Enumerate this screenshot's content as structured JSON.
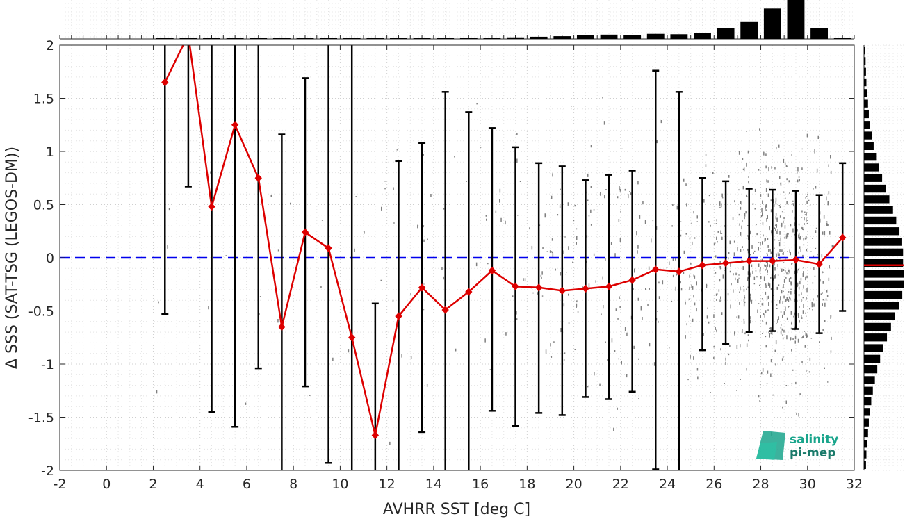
{
  "chart_data": {
    "type": "scatter",
    "title": "",
    "xlabel": "AVHRR SST [deg C]",
    "ylabel": "Δ SSS (SAT-TSG (LEGOS-DM))",
    "xlim": [
      -2,
      32
    ],
    "ylim": [
      -2,
      2
    ],
    "xticks": [
      -2,
      0,
      2,
      4,
      6,
      8,
      10,
      12,
      14,
      16,
      18,
      20,
      22,
      24,
      26,
      28,
      30,
      32
    ],
    "yticks": [
      -2,
      -1.5,
      -1,
      -0.5,
      0,
      0.5,
      1,
      1.5,
      2
    ],
    "grid": true,
    "reference_line": {
      "y": 0,
      "style": "dashed",
      "color": "#0000ee"
    },
    "binned_stats": {
      "x": [
        2.5,
        3.5,
        4.5,
        5.5,
        6.5,
        7.5,
        8.5,
        9.5,
        10.5,
        11.5,
        12.5,
        13.5,
        14.5,
        15.5,
        16.5,
        17.5,
        18.5,
        19.5,
        20.5,
        21.5,
        22.5,
        23.5,
        24.5,
        25.5,
        26.5,
        27.5,
        28.5,
        29.5,
        30.5,
        31.5
      ],
      "mean": [
        1.65,
        2.1,
        0.48,
        1.25,
        0.75,
        -0.65,
        0.24,
        0.09,
        -0.75,
        -1.67,
        -0.55,
        -0.28,
        -0.49,
        -0.32,
        -0.12,
        -0.27,
        -0.28,
        -0.31,
        -0.29,
        -0.27,
        -0.21,
        -0.11,
        -0.13,
        -0.07,
        -0.05,
        -0.03,
        -0.03,
        -0.02,
        -0.06,
        0.19
      ],
      "upper": [
        2.6,
        2.6,
        2.6,
        2.6,
        2.6,
        1.16,
        1.69,
        2.6,
        2.6,
        -0.43,
        0.91,
        1.08,
        1.56,
        1.37,
        1.22,
        1.04,
        0.89,
        0.86,
        0.73,
        0.78,
        0.82,
        1.76,
        1.56,
        0.75,
        0.72,
        0.65,
        0.64,
        0.63,
        0.59,
        0.89
      ],
      "lower": [
        -0.53,
        0.67,
        -1.45,
        -1.59,
        -1.04,
        -2.6,
        -1.21,
        -1.93,
        -2.6,
        -2.6,
        -2.6,
        -1.64,
        -2.6,
        -2.6,
        -1.44,
        -1.58,
        -1.46,
        -1.48,
        -1.31,
        -1.33,
        -1.26,
        -1.99,
        -2.6,
        -0.87,
        -0.81,
        -0.7,
        -0.69,
        -0.67,
        -0.71,
        -0.5
      ],
      "mean_color": "#dd0000",
      "errorbar_color": "#000000"
    },
    "x_histogram": {
      "bins": [
        2.5,
        3.5,
        4.5,
        5.5,
        6.5,
        7.5,
        8.5,
        9.5,
        10.5,
        11.5,
        12.5,
        13.5,
        14.5,
        15.5,
        16.5,
        17.5,
        18.5,
        19.5,
        20.5,
        21.5,
        22.5,
        23.5,
        24.5,
        25.5,
        26.5,
        27.5,
        28.5,
        29.5,
        30.5,
        31.5
      ],
      "counts": [
        0.002,
        0.002,
        0.002,
        0.002,
        0.002,
        0.002,
        0.002,
        0.002,
        0.002,
        0.002,
        0.02,
        0.02,
        0.02,
        0.025,
        0.025,
        0.04,
        0.055,
        0.07,
        0.09,
        0.11,
        0.095,
        0.13,
        0.12,
        0.16,
        0.28,
        0.45,
        0.78,
        1.0,
        0.27,
        0.002
      ]
    },
    "y_histogram": {
      "bin_width": 0.1,
      "bins": [
        -1.95,
        -1.85,
        -1.75,
        -1.65,
        -1.55,
        -1.45,
        -1.35,
        -1.25,
        -1.15,
        -1.05,
        -0.95,
        -0.85,
        -0.75,
        -0.65,
        -0.55,
        -0.45,
        -0.35,
        -0.25,
        -0.15,
        -0.05,
        0.05,
        0.15,
        0.25,
        0.35,
        0.45,
        0.55,
        0.65,
        0.75,
        0.85,
        0.95,
        1.05,
        1.15,
        1.25,
        1.35,
        1.45,
        1.55,
        1.65,
        1.75,
        1.85,
        1.95
      ],
      "counts": [
        0.05,
        0.06,
        0.08,
        0.1,
        0.12,
        0.15,
        0.18,
        0.22,
        0.27,
        0.33,
        0.4,
        0.48,
        0.57,
        0.67,
        0.77,
        0.87,
        0.95,
        1.0,
        1.0,
        0.97,
        0.97,
        0.93,
        0.88,
        0.8,
        0.72,
        0.63,
        0.54,
        0.45,
        0.37,
        0.3,
        0.24,
        0.19,
        0.15,
        0.12,
        0.1,
        0.08,
        0.06,
        0.05,
        0.04,
        0.03
      ],
      "median_line": -0.07,
      "median_color": "#dd0000"
    },
    "scatter_color": "#808080"
  },
  "logo": {
    "line1": "salinity",
    "line2": "pi-mep"
  }
}
